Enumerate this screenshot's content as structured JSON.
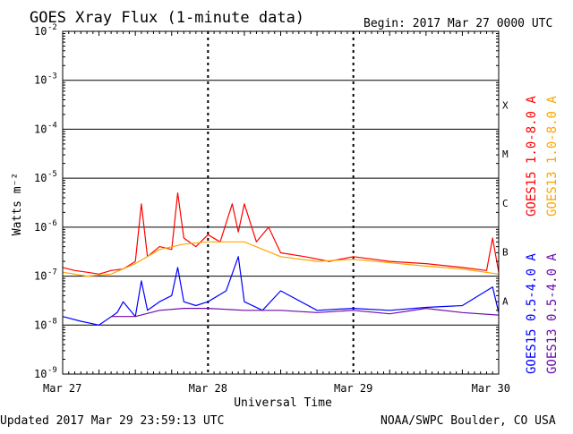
{
  "title": "GOES Xray Flux (1-minute data)",
  "begin_label": "Begin:  2017 Mar 27 0000 UTC",
  "updated_label": "Updated 2017 Mar 29 23:59:13 UTC",
  "credit_label": "NOAA/SWPC Boulder, CO USA",
  "colors": {
    "goes15_long": "#ff0000",
    "goes13_long": "#ffa500",
    "goes15_short": "#0000ff",
    "goes13_short": "#6a0dad",
    "gridline": "#000000",
    "background": "#ffffff"
  },
  "chart_data": {
    "type": "line",
    "title": "GOES Xray Flux (1-minute data)",
    "xlabel": "Universal Time",
    "ylabel": "Watts m⁻²",
    "yscale": "log",
    "ylim": [
      1e-09,
      0.01
    ],
    "xlim": [
      "2017-03-27",
      "2017-03-30"
    ],
    "x_ticks": [
      "Mar 27",
      "Mar 28",
      "Mar 29",
      "Mar 30"
    ],
    "y_ticks": [
      {
        "base": "10",
        "exp": "-9",
        "value": 1e-09
      },
      {
        "base": "10",
        "exp": "-8",
        "value": 1e-08
      },
      {
        "base": "10",
        "exp": "-7",
        "value": 1e-07
      },
      {
        "base": "10",
        "exp": "-6",
        "value": 1e-06
      },
      {
        "base": "10",
        "exp": "-5",
        "value": 1e-05
      },
      {
        "base": "10",
        "exp": "-4",
        "value": 0.0001
      },
      {
        "base": "10",
        "exp": "-3",
        "value": 0.001
      },
      {
        "base": "10",
        "exp": "-2",
        "value": 0.01
      }
    ],
    "flare_classes": [
      {
        "label": "X",
        "value": 0.0001
      },
      {
        "label": "M",
        "value": 1e-05
      },
      {
        "label": "C",
        "value": 1e-06
      },
      {
        "label": "B",
        "value": 1e-07
      },
      {
        "label": "A",
        "value": 1e-08
      }
    ],
    "grid": "horizontal solid at decades, vertical dashed at day boundaries",
    "legend_position": "right",
    "series": [
      {
        "name": "GOES15 1.0-8.0 A",
        "color": "#ff0000",
        "x": [
          "2017-03-27 00:00",
          "2017-03-27 02:00",
          "2017-03-27 04:00",
          "2017-03-27 06:00",
          "2017-03-27 08:00",
          "2017-03-27 10:00",
          "2017-03-27 12:00",
          "2017-03-27 13:00",
          "2017-03-27 14:00",
          "2017-03-27 16:00",
          "2017-03-27 18:00",
          "2017-03-27 19:00",
          "2017-03-27 20:00",
          "2017-03-27 22:00",
          "2017-03-28 00:00",
          "2017-03-28 02:00",
          "2017-03-28 04:00",
          "2017-03-28 05:00",
          "2017-03-28 06:00",
          "2017-03-28 08:00",
          "2017-03-28 10:00",
          "2017-03-28 12:00",
          "2017-03-28 16:00",
          "2017-03-28 20:00",
          "2017-03-29 00:00",
          "2017-03-29 06:00",
          "2017-03-29 12:00",
          "2017-03-29 18:00",
          "2017-03-29 22:00",
          "2017-03-29 23:00",
          "2017-03-30 00:00"
        ],
        "y": [
          1.5e-07,
          1.3e-07,
          1.2e-07,
          1.1e-07,
          1.3e-07,
          1.4e-07,
          2e-07,
          3e-06,
          2.5e-07,
          4e-07,
          3.5e-07,
          5e-06,
          6e-07,
          4e-07,
          7e-07,
          5e-07,
          3e-06,
          8e-07,
          3e-06,
          5e-07,
          1e-06,
          3e-07,
          2.5e-07,
          2e-07,
          2.5e-07,
          2e-07,
          1.8e-07,
          1.5e-07,
          1.3e-07,
          6e-07,
          1.2e-07
        ]
      },
      {
        "name": "GOES13 1.0-8.0 A",
        "color": "#ffa500",
        "x": [
          "2017-03-27 00:00",
          "2017-03-27 04:00",
          "2017-03-27 08:00",
          "2017-03-27 12:00",
          "2017-03-27 16:00",
          "2017-03-27 20:00",
          "2017-03-28 00:00",
          "2017-03-28 06:00",
          "2017-03-28 12:00",
          "2017-03-28 18:00",
          "2017-03-29 00:00",
          "2017-03-29 12:00",
          "2017-03-29 18:00",
          "2017-03-30 00:00"
        ],
        "y": [
          1.2e-07,
          1e-07,
          1.1e-07,
          1.8e-07,
          3.5e-07,
          4.5e-07,
          5e-07,
          5e-07,
          2.5e-07,
          2e-07,
          2.2e-07,
          1.6e-07,
          1.4e-07,
          1.1e-07
        ]
      },
      {
        "name": "GOES15 0.5-4.0 A",
        "color": "#0000ff",
        "x": [
          "2017-03-27 00:00",
          "2017-03-27 03:00",
          "2017-03-27 06:00",
          "2017-03-27 09:00",
          "2017-03-27 10:00",
          "2017-03-27 12:00",
          "2017-03-27 13:00",
          "2017-03-27 14:00",
          "2017-03-27 16:00",
          "2017-03-27 18:00",
          "2017-03-27 19:00",
          "2017-03-27 20:00",
          "2017-03-27 22:00",
          "2017-03-28 00:00",
          "2017-03-28 03:00",
          "2017-03-28 05:00",
          "2017-03-28 06:00",
          "2017-03-28 09:00",
          "2017-03-28 12:00",
          "2017-03-28 18:00",
          "2017-03-29 00:00",
          "2017-03-29 06:00",
          "2017-03-29 12:00",
          "2017-03-29 18:00",
          "2017-03-29 23:00",
          "2017-03-30 00:00"
        ],
        "y": [
          1.5e-08,
          1.2e-08,
          1e-08,
          1.8e-08,
          3e-08,
          1.5e-08,
          8e-08,
          2e-08,
          3e-08,
          4e-08,
          1.5e-07,
          3e-08,
          2.5e-08,
          3e-08,
          5e-08,
          2.5e-07,
          3e-08,
          2e-08,
          5e-08,
          2e-08,
          2.2e-08,
          2e-08,
          2.3e-08,
          2.5e-08,
          6e-08,
          1.8e-08
        ]
      },
      {
        "name": "GOES13 0.5-4.0 A",
        "color": "#6a0dad",
        "x": [
          "2017-03-27 08:00",
          "2017-03-27 12:00",
          "2017-03-27 16:00",
          "2017-03-27 20:00",
          "2017-03-28 00:00",
          "2017-03-28 06:00",
          "2017-03-28 12:00",
          "2017-03-28 18:00",
          "2017-03-29 00:00",
          "2017-03-29 06:00",
          "2017-03-29 12:00",
          "2017-03-29 18:00",
          "2017-03-30 00:00"
        ],
        "y": [
          1.5e-08,
          1.5e-08,
          2e-08,
          2.2e-08,
          2.2e-08,
          2e-08,
          2e-08,
          1.8e-08,
          2e-08,
          1.7e-08,
          2.2e-08,
          1.8e-08,
          1.6e-08
        ]
      }
    ]
  }
}
